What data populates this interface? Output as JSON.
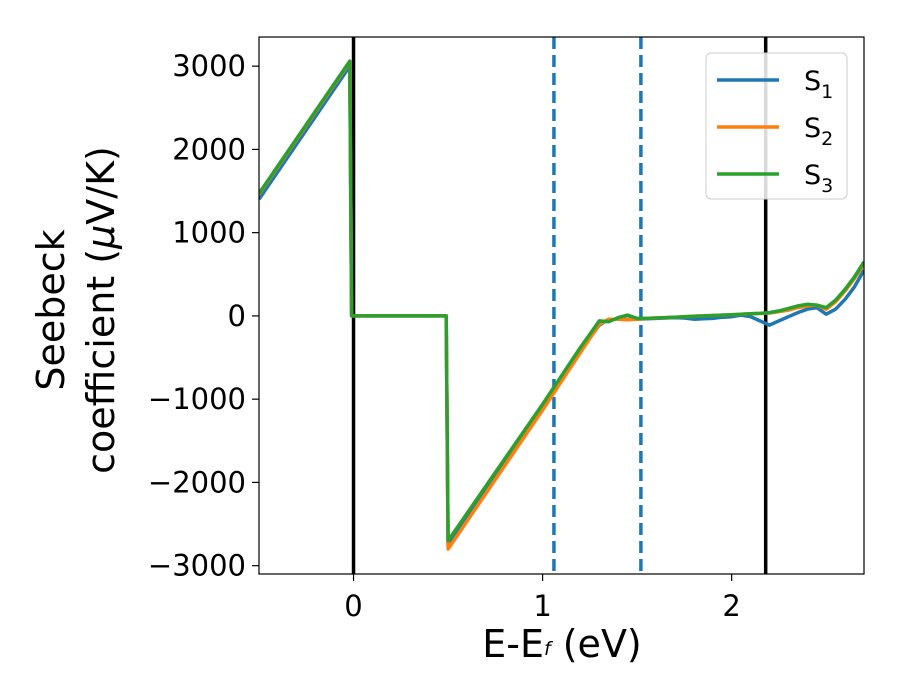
{
  "chart_data": {
    "type": "line",
    "xlabel": {
      "main": "E-E",
      "sub": "f",
      "unit": " (eV)"
    },
    "ylabel": {
      "line1": "Seebeck",
      "line2_pre": "coefficient  (",
      "mu": "μ",
      "line2_post": "V/K)"
    },
    "xlim": [
      -0.5,
      2.7
    ],
    "ylim": [
      -3100,
      3350
    ],
    "xticks": [
      {
        "value": 0,
        "label": "0"
      },
      {
        "value": 1,
        "label": "1"
      },
      {
        "value": 2,
        "label": "2"
      }
    ],
    "yticks": [
      {
        "value": 3000,
        "label": "3000"
      },
      {
        "value": 2000,
        "label": "2000"
      },
      {
        "value": 1000,
        "label": "1000"
      },
      {
        "value": 0,
        "label": "0"
      },
      {
        "value": -1000,
        "label": "−1000"
      },
      {
        "value": -2000,
        "label": "−2000"
      },
      {
        "value": -3000,
        "label": "−3000"
      }
    ],
    "grid": false,
    "legend_position": "top-right",
    "vlines": [
      {
        "x": 0.0,
        "style": "solid",
        "color": "#000000"
      },
      {
        "x": 1.06,
        "style": "dashed",
        "color": "#1f77b4"
      },
      {
        "x": 1.52,
        "style": "dashed",
        "color": "#1f77b4"
      },
      {
        "x": 2.18,
        "style": "solid",
        "color": "#000000"
      }
    ],
    "series": [
      {
        "name": "S",
        "sub": "1",
        "color": "#1f77b4",
        "x": [
          -0.5,
          -0.02,
          -0.01,
          0.49,
          0.5,
          1.0,
          1.2,
          1.3,
          1.35,
          1.4,
          1.45,
          1.5,
          1.55,
          1.6,
          1.65,
          1.7,
          1.75,
          1.8,
          1.85,
          1.9,
          1.95,
          2.0,
          2.05,
          2.1,
          2.15,
          2.2,
          2.25,
          2.3,
          2.35,
          2.4,
          2.45,
          2.5,
          2.55,
          2.6,
          2.65,
          2.7
        ],
        "y": [
          1400,
          3000,
          0,
          0,
          -2740,
          -1100,
          -420,
          -110,
          -40,
          -40,
          -40,
          -40,
          -35,
          -30,
          -25,
          -20,
          -25,
          -40,
          -35,
          -30,
          -15,
          -10,
          10,
          -10,
          -60,
          -110,
          -60,
          -10,
          40,
          80,
          100,
          20,
          80,
          200,
          350,
          550
        ]
      },
      {
        "name": "S",
        "sub": "2",
        "color": "#ff7f0e",
        "x": [
          -0.5,
          -0.02,
          -0.01,
          0.49,
          0.5,
          1.0,
          1.2,
          1.3,
          1.35,
          1.4,
          1.45,
          1.5,
          1.55,
          1.6,
          1.65,
          1.7,
          1.75,
          1.8,
          1.85,
          1.9,
          1.95,
          2.0,
          2.05,
          2.1,
          2.15,
          2.2,
          2.25,
          2.3,
          2.35,
          2.4,
          2.45,
          2.5,
          2.55,
          2.6,
          2.65,
          2.7
        ],
        "y": [
          1460,
          3050,
          0,
          0,
          -2800,
          -1130,
          -440,
          -100,
          -40,
          -40,
          -45,
          -40,
          -30,
          -25,
          -20,
          -15,
          -10,
          -5,
          0,
          5,
          10,
          15,
          20,
          25,
          30,
          35,
          50,
          70,
          100,
          120,
          130,
          80,
          170,
          300,
          450,
          620
        ]
      },
      {
        "name": "S",
        "sub": "3",
        "color": "#2ca02c",
        "x": [
          -0.5,
          -0.02,
          -0.01,
          0.49,
          0.5,
          1.0,
          1.2,
          1.3,
          1.35,
          1.4,
          1.45,
          1.5,
          1.55,
          1.6,
          1.65,
          1.7,
          1.75,
          1.8,
          1.85,
          1.9,
          1.95,
          2.0,
          2.05,
          2.1,
          2.15,
          2.2,
          2.25,
          2.3,
          2.35,
          2.4,
          2.45,
          2.5,
          2.55,
          2.6,
          2.65,
          2.7
        ],
        "y": [
          1470,
          3060,
          0,
          0,
          -2700,
          -1060,
          -380,
          -60,
          -70,
          -20,
          10,
          -30,
          -30,
          -25,
          -20,
          -15,
          -10,
          -5,
          0,
          5,
          10,
          15,
          20,
          25,
          30,
          40,
          60,
          90,
          120,
          140,
          130,
          100,
          190,
          320,
          470,
          650
        ]
      }
    ]
  }
}
